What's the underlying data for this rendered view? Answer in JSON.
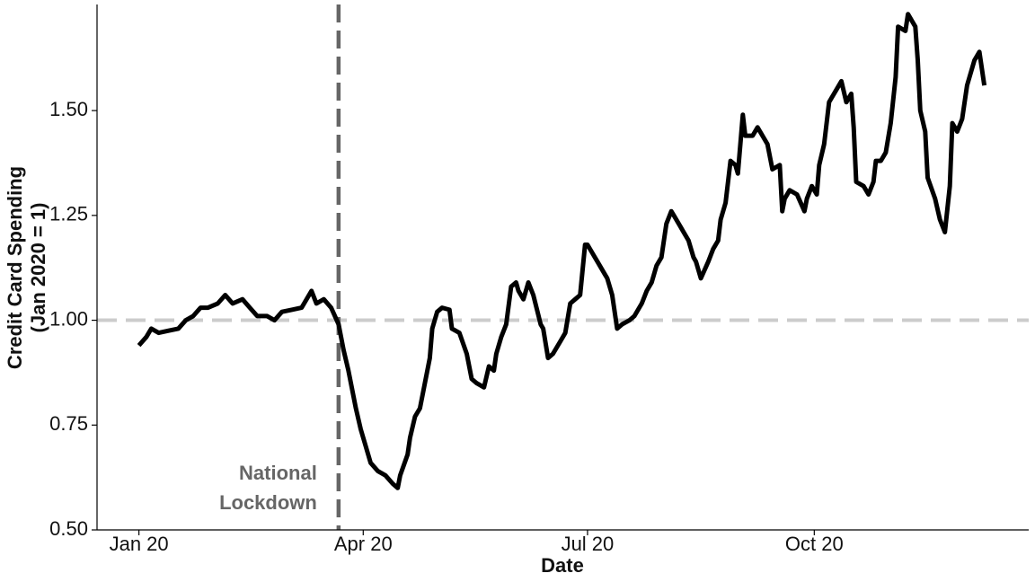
{
  "chart_data": {
    "type": "line",
    "x_label": "Date",
    "y_label": [
      "Credit Card Spending",
      "(Jan 2020 = 1)"
    ],
    "annotation": [
      "National",
      "Lockdown"
    ],
    "vline": 81,
    "hline": 1,
    "color": "#000000",
    "x": [
      0,
      3,
      5,
      8,
      12,
      16,
      19,
      22,
      25,
      28,
      32,
      35,
      38,
      42,
      45,
      48,
      52,
      55,
      58,
      62,
      66,
      70,
      72,
      75,
      78,
      81,
      83,
      85,
      88,
      90,
      92,
      94,
      97,
      100,
      103,
      105,
      106,
      109,
      110,
      112,
      114,
      116,
      118,
      119,
      121,
      123,
      126,
      127,
      130,
      133,
      135,
      137,
      140,
      142,
      144,
      145,
      147,
      149,
      151,
      153,
      154,
      156,
      158,
      160,
      163,
      164,
      166,
      168,
      171,
      173,
      175,
      177,
      179,
      181,
      182,
      184,
      186,
      189,
      190,
      192,
      194,
      196,
      199,
      201,
      204,
      206,
      208,
      210,
      212,
      214,
      216,
      217,
      220,
      223,
      225,
      226,
      228,
      231,
      233,
      235,
      236,
      238,
      240,
      242,
      243,
      245,
      246,
      249,
      251,
      253,
      255,
      257,
      260,
      261,
      262,
      264,
      267,
      270,
      271,
      273,
      275,
      276,
      278,
      280,
      281,
      283,
      285,
      287,
      289,
      290,
      291,
      294,
      296,
      298,
      299,
      301,
      303,
      305,
      307,
      308,
      311,
      312,
      315,
      316,
      317,
      319,
      320,
      323,
      325,
      327,
      329,
      330,
      332,
      334,
      336,
      339,
      341,
      343
    ],
    "values": [
      0.94,
      0.96,
      0.98,
      0.97,
      0.975,
      0.98,
      1.0,
      1.01,
      1.03,
      1.03,
      1.04,
      1.06,
      1.04,
      1.05,
      1.03,
      1.01,
      1.01,
      1.0,
      1.02,
      1.025,
      1.03,
      1.07,
      1.04,
      1.05,
      1.03,
      0.99,
      0.93,
      0.88,
      0.79,
      0.74,
      0.7,
      0.66,
      0.64,
      0.63,
      0.61,
      0.6,
      0.63,
      0.68,
      0.72,
      0.77,
      0.79,
      0.85,
      0.91,
      0.98,
      1.02,
      1.03,
      1.025,
      0.98,
      0.97,
      0.92,
      0.86,
      0.85,
      0.84,
      0.89,
      0.88,
      0.92,
      0.96,
      0.99,
      1.08,
      1.09,
      1.07,
      1.05,
      1.09,
      1.06,
      0.99,
      0.98,
      0.91,
      0.92,
      0.95,
      0.97,
      1.04,
      1.05,
      1.06,
      1.18,
      1.18,
      1.16,
      1.14,
      1.11,
      1.1,
      1.06,
      0.98,
      0.99,
      1.0,
      1.01,
      1.04,
      1.07,
      1.09,
      1.13,
      1.15,
      1.23,
      1.26,
      1.25,
      1.22,
      1.19,
      1.15,
      1.14,
      1.1,
      1.14,
      1.17,
      1.19,
      1.24,
      1.28,
      1.38,
      1.37,
      1.35,
      1.49,
      1.44,
      1.44,
      1.46,
      1.44,
      1.42,
      1.36,
      1.37,
      1.26,
      1.29,
      1.31,
      1.3,
      1.26,
      1.29,
      1.32,
      1.3,
      1.37,
      1.42,
      1.52,
      1.53,
      1.55,
      1.57,
      1.52,
      1.54,
      1.46,
      1.33,
      1.32,
      1.3,
      1.33,
      1.38,
      1.38,
      1.4,
      1.47,
      1.58,
      1.7,
      1.69,
      1.73,
      1.7,
      1.62,
      1.5,
      1.45,
      1.34,
      1.29,
      1.24,
      1.21,
      1.32,
      1.47,
      1.45,
      1.48,
      1.56,
      1.62,
      1.64,
      1.56
    ],
    "xlim": [
      -17,
      361
    ],
    "xticks": [
      {
        "value": 0,
        "label": "Jan 20"
      },
      {
        "value": 91,
        "label": "Apr 20"
      },
      {
        "value": 182,
        "label": "Jul 20"
      },
      {
        "value": 274,
        "label": "Oct 20"
      }
    ],
    "ylim": [
      0.5,
      1.753
    ],
    "yticks": [
      {
        "value": 0.5,
        "label": "0.50"
      },
      {
        "value": 0.75,
        "label": "0.75"
      },
      {
        "value": 1,
        "label": "1.00"
      },
      {
        "value": 1.25,
        "label": "1.25"
      },
      {
        "value": 1.5,
        "label": "1.50"
      }
    ]
  }
}
